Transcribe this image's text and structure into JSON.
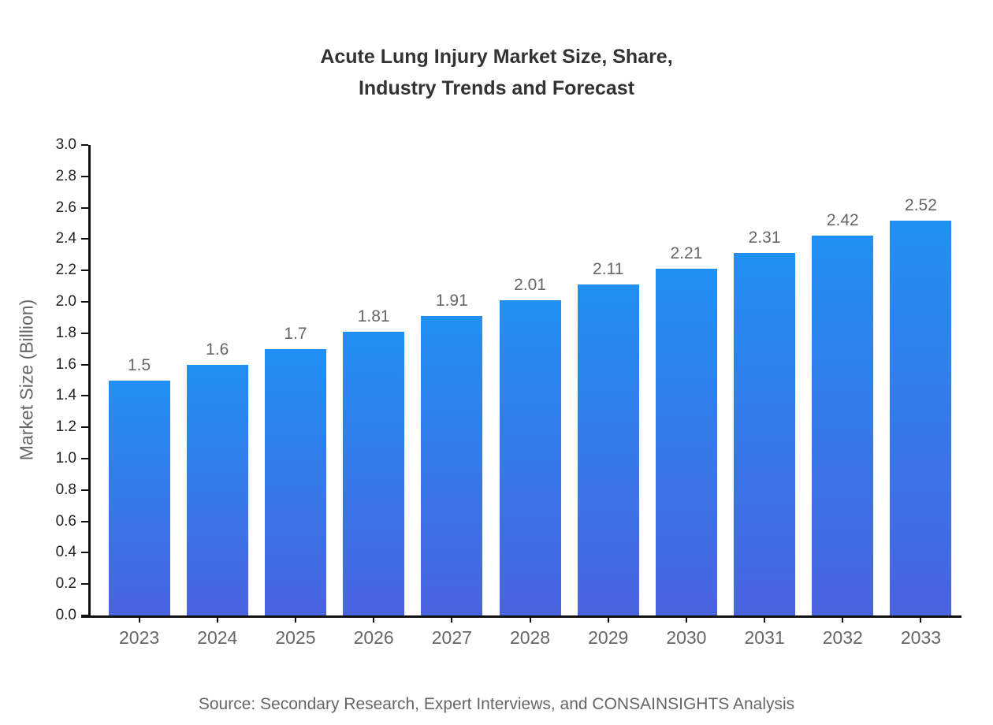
{
  "title": "Acute Lung Injury Market Size, Share,\nIndustry Trends and Forecast",
  "source_note": "Source: Secondary Research, Expert Interviews, and CONSAINSIGHTS Analysis",
  "chart_data": {
    "type": "bar",
    "title": "Acute Lung Injury Market Size, Share, Industry Trends and Forecast",
    "xlabel": "",
    "ylabel": "Market Size (Billion)",
    "categories": [
      "2023",
      "2024",
      "2025",
      "2026",
      "2027",
      "2028",
      "2029",
      "2030",
      "2031",
      "2032",
      "2033"
    ],
    "values": [
      1.5,
      1.6,
      1.7,
      1.81,
      1.91,
      2.01,
      2.11,
      2.21,
      2.31,
      2.42,
      2.52
    ],
    "value_labels": [
      "1.5",
      "1.6",
      "1.7",
      "1.81",
      "1.91",
      "2.01",
      "2.11",
      "2.21",
      "2.31",
      "2.42",
      "2.52"
    ],
    "ylim": [
      0.0,
      3.0
    ],
    "ytick_step": 0.2,
    "ytick_labels": [
      "0.0",
      "0.2",
      "0.4",
      "0.6",
      "0.8",
      "1.0",
      "1.2",
      "1.4",
      "1.6",
      "1.8",
      "2.0",
      "2.2",
      "2.4",
      "2.6",
      "2.8",
      "3.0"
    ],
    "grid": false,
    "legend": "none",
    "colors": {
      "bar_gradient_top": "#2190f4",
      "bar_gradient_bottom": "#4a63de",
      "axis_line": "#111111",
      "y_tick_label": "#222222",
      "x_tick_label": "#666666",
      "value_label": "#666666",
      "title": "#333333",
      "source": "#666666",
      "background": "#ffffff"
    }
  }
}
